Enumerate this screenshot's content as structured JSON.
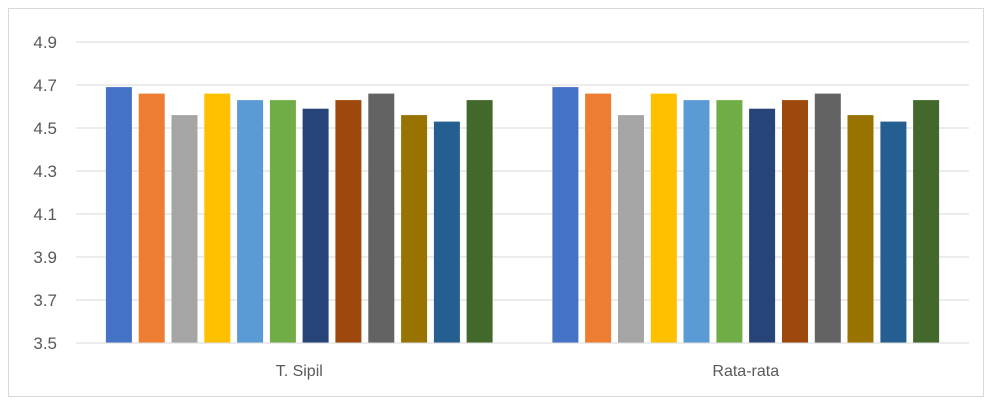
{
  "chart_data": {
    "type": "bar",
    "categories": [
      "T. Sipil",
      "Rata-rata"
    ],
    "series": [
      {
        "values": [
          4.69,
          4.69
        ],
        "color": "#4472C4"
      },
      {
        "values": [
          4.66,
          4.66
        ],
        "color": "#ED7D31"
      },
      {
        "values": [
          4.56,
          4.56
        ],
        "color": "#A5A5A5"
      },
      {
        "values": [
          4.66,
          4.66
        ],
        "color": "#FFC000"
      },
      {
        "values": [
          4.63,
          4.63
        ],
        "color": "#5B9BD5"
      },
      {
        "values": [
          4.63,
          4.63
        ],
        "color": "#70AD47"
      },
      {
        "values": [
          4.59,
          4.59
        ],
        "color": "#264478"
      },
      {
        "values": [
          4.63,
          4.63
        ],
        "color": "#9E480E"
      },
      {
        "values": [
          4.66,
          4.66
        ],
        "color": "#636363"
      },
      {
        "values": [
          4.56,
          4.56
        ],
        "color": "#997300"
      },
      {
        "values": [
          4.53,
          4.53
        ],
        "color": "#255E91"
      },
      {
        "values": [
          4.63,
          4.63
        ],
        "color": "#43682B"
      }
    ],
    "yticks": [
      "3.5",
      "3.7",
      "3.9",
      "4.1",
      "4.3",
      "4.5",
      "4.7",
      "4.9"
    ],
    "ylim": [
      3.5,
      5.0
    ],
    "grid": true,
    "legend": "none",
    "title": "",
    "xlabel": "",
    "ylabel": ""
  }
}
